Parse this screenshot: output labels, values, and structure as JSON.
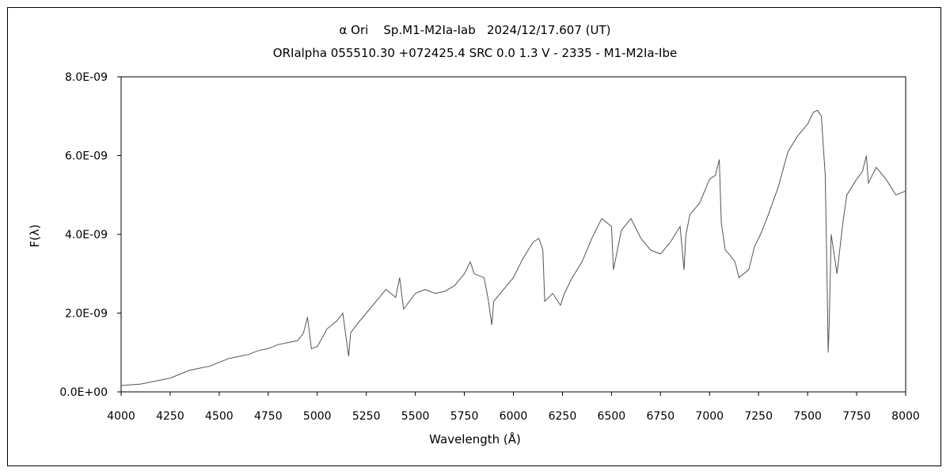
{
  "chart_data": {
    "type": "line",
    "title": "α Ori    Sp.M1-M2Ia-Iab   2024/12/17.607 (UT)",
    "subtitle": "ORIalpha 055510.30 +072425.4 SRC 0.0 1.3 V - 2335 - M1-M2Ia-Ibe",
    "xlabel": "Wavelength (Å)",
    "ylabel": "F(λ)",
    "xlim": [
      4000,
      8000
    ],
    "ylim": [
      0,
      8e-09
    ],
    "xticks": [
      4000,
      4250,
      4500,
      4750,
      5000,
      5250,
      5500,
      5750,
      6000,
      6250,
      6500,
      6750,
      7000,
      7250,
      7500,
      7750,
      8000
    ],
    "xtick_labels": [
      "4000",
      "4250",
      "4500",
      "4750",
      "5000",
      "5250",
      "5500",
      "5750",
      "6000",
      "6250",
      "6500",
      "6750",
      "7000",
      "7250",
      "7500",
      "7750",
      "8000"
    ],
    "yticks": [
      0,
      2e-09,
      4e-09,
      6e-09,
      8e-09
    ],
    "ytick_labels": [
      "0.0E+00",
      "2.0E-09",
      "4.0E-09",
      "6.0E-09",
      "8.0E-09"
    ],
    "grid": false,
    "series": [
      {
        "color": "#555555",
        "x": [
          4000,
          4050,
          4100,
          4150,
          4200,
          4250,
          4300,
          4350,
          4400,
          4450,
          4500,
          4550,
          4600,
          4650,
          4700,
          4750,
          4800,
          4850,
          4900,
          4930,
          4950,
          4970,
          5000,
          5050,
          5100,
          5130,
          5160,
          5170,
          5200,
          5250,
          5300,
          5350,
          5400,
          5420,
          5440,
          5500,
          5550,
          5600,
          5650,
          5700,
          5750,
          5780,
          5800,
          5850,
          5870,
          5890,
          5900,
          5950,
          6000,
          6050,
          6100,
          6130,
          6150,
          6160,
          6200,
          6240,
          6260,
          6300,
          6350,
          6400,
          6450,
          6500,
          6510,
          6550,
          6600,
          6650,
          6700,
          6750,
          6800,
          6850,
          6870,
          6880,
          6900,
          6950,
          7000,
          7030,
          7050,
          7060,
          7080,
          7100,
          7130,
          7150,
          7200,
          7230,
          7260,
          7300,
          7350,
          7400,
          7450,
          7500,
          7530,
          7550,
          7570,
          7590,
          7600,
          7605,
          7610,
          7620,
          7650,
          7680,
          7700,
          7750,
          7780,
          7800,
          7810,
          7850,
          7900,
          7950,
          8000
        ],
        "y": [
          1.6e-10,
          1.8e-10,
          2e-10,
          2.5e-10,
          3e-10,
          3.5e-10,
          4.5e-10,
          5.5e-10,
          6e-10,
          6.5e-10,
          7.5e-10,
          8.5e-10,
          9e-10,
          9.5e-10,
          1.05e-09,
          1.1e-09,
          1.2e-09,
          1.25e-09,
          1.3e-09,
          1.5e-09,
          1.9e-09,
          1.1e-09,
          1.15e-09,
          1.6e-09,
          1.8e-09,
          2e-09,
          9e-10,
          1.5e-09,
          1.7e-09,
          2e-09,
          2.3e-09,
          2.6e-09,
          2.4e-09,
          2.9e-09,
          2.1e-09,
          2.5e-09,
          2.6e-09,
          2.5e-09,
          2.55e-09,
          2.7e-09,
          3e-09,
          3.3e-09,
          3e-09,
          2.9e-09,
          2.4e-09,
          1.7e-09,
          2.3e-09,
          2.6e-09,
          2.9e-09,
          3.4e-09,
          3.8e-09,
          3.9e-09,
          3.6e-09,
          2.3e-09,
          2.5e-09,
          2.2e-09,
          2.5e-09,
          2.9e-09,
          3.3e-09,
          3.9e-09,
          4.4e-09,
          4.2e-09,
          3.1e-09,
          4.1e-09,
          4.4e-09,
          3.9e-09,
          3.6e-09,
          3.5e-09,
          3.8e-09,
          4.2e-09,
          3.1e-09,
          4e-09,
          4.5e-09,
          4.8e-09,
          5.4e-09,
          5.5e-09,
          5.9e-09,
          4.3e-09,
          3.6e-09,
          3.5e-09,
          3.3e-09,
          2.9e-09,
          3.1e-09,
          3.7e-09,
          4e-09,
          4.5e-09,
          5.2e-09,
          6.1e-09,
          6.5e-09,
          6.8e-09,
          7.1e-09,
          7.15e-09,
          7e-09,
          5.5e-09,
          2.6e-09,
          1e-09,
          1.7e-09,
          4e-09,
          3e-09,
          4.3e-09,
          5e-09,
          5.4e-09,
          5.6e-09,
          6e-09,
          5.3e-09,
          5.7e-09,
          5.4e-09,
          5e-09,
          5.1e-09
        ]
      }
    ]
  }
}
